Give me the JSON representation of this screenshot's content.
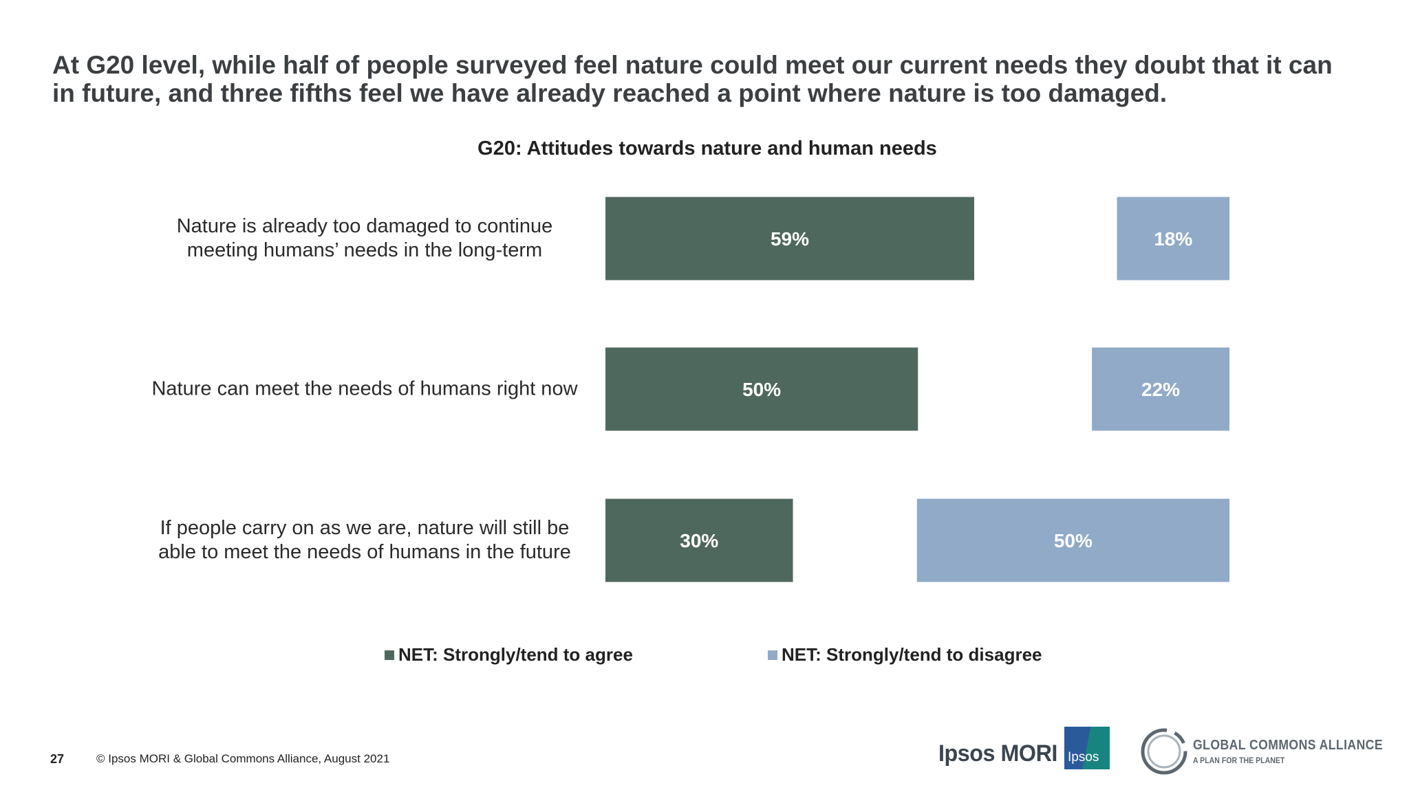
{
  "headline": "At G20 level, while half of people surveyed feel nature could meet our current needs they doubt that it can in future, and three fifths feel we have already reached a point where nature is too damaged.",
  "chart_data": {
    "type": "bar",
    "orientation": "horizontal",
    "title": "G20: Attitudes towards nature and human needs",
    "categories": [
      "Nature is already too damaged to continue meeting humans’ needs in the long-term",
      "Nature can meet the needs of humans right now",
      "If people carry on as we are, nature will still be able to meet the needs of humans in the future"
    ],
    "series": [
      {
        "name": "NET: Strongly/tend to agree",
        "color": "#4f685d",
        "values": [
          59,
          50,
          30
        ],
        "labels": [
          "59%",
          "50%",
          "30%"
        ]
      },
      {
        "name": "NET: Strongly/tend to disagree",
        "color": "#90aac8",
        "values": [
          18,
          22,
          50
        ],
        "labels": [
          "18%",
          "22%",
          "50%"
        ]
      }
    ],
    "value_unit": "%",
    "legend_position": "bottom",
    "grid": false
  },
  "footer": {
    "page_number": "27",
    "copyright": "© Ipsos MORI & Global Commons Alliance, August 2021"
  },
  "logos": {
    "ipsos_mori": "Ipsos MORI",
    "ipsos_badge": "Ipsos",
    "gca_name": "GLOBAL COMMONS ALLIANCE",
    "gca_tagline": "A PLAN FOR THE PLANET"
  }
}
